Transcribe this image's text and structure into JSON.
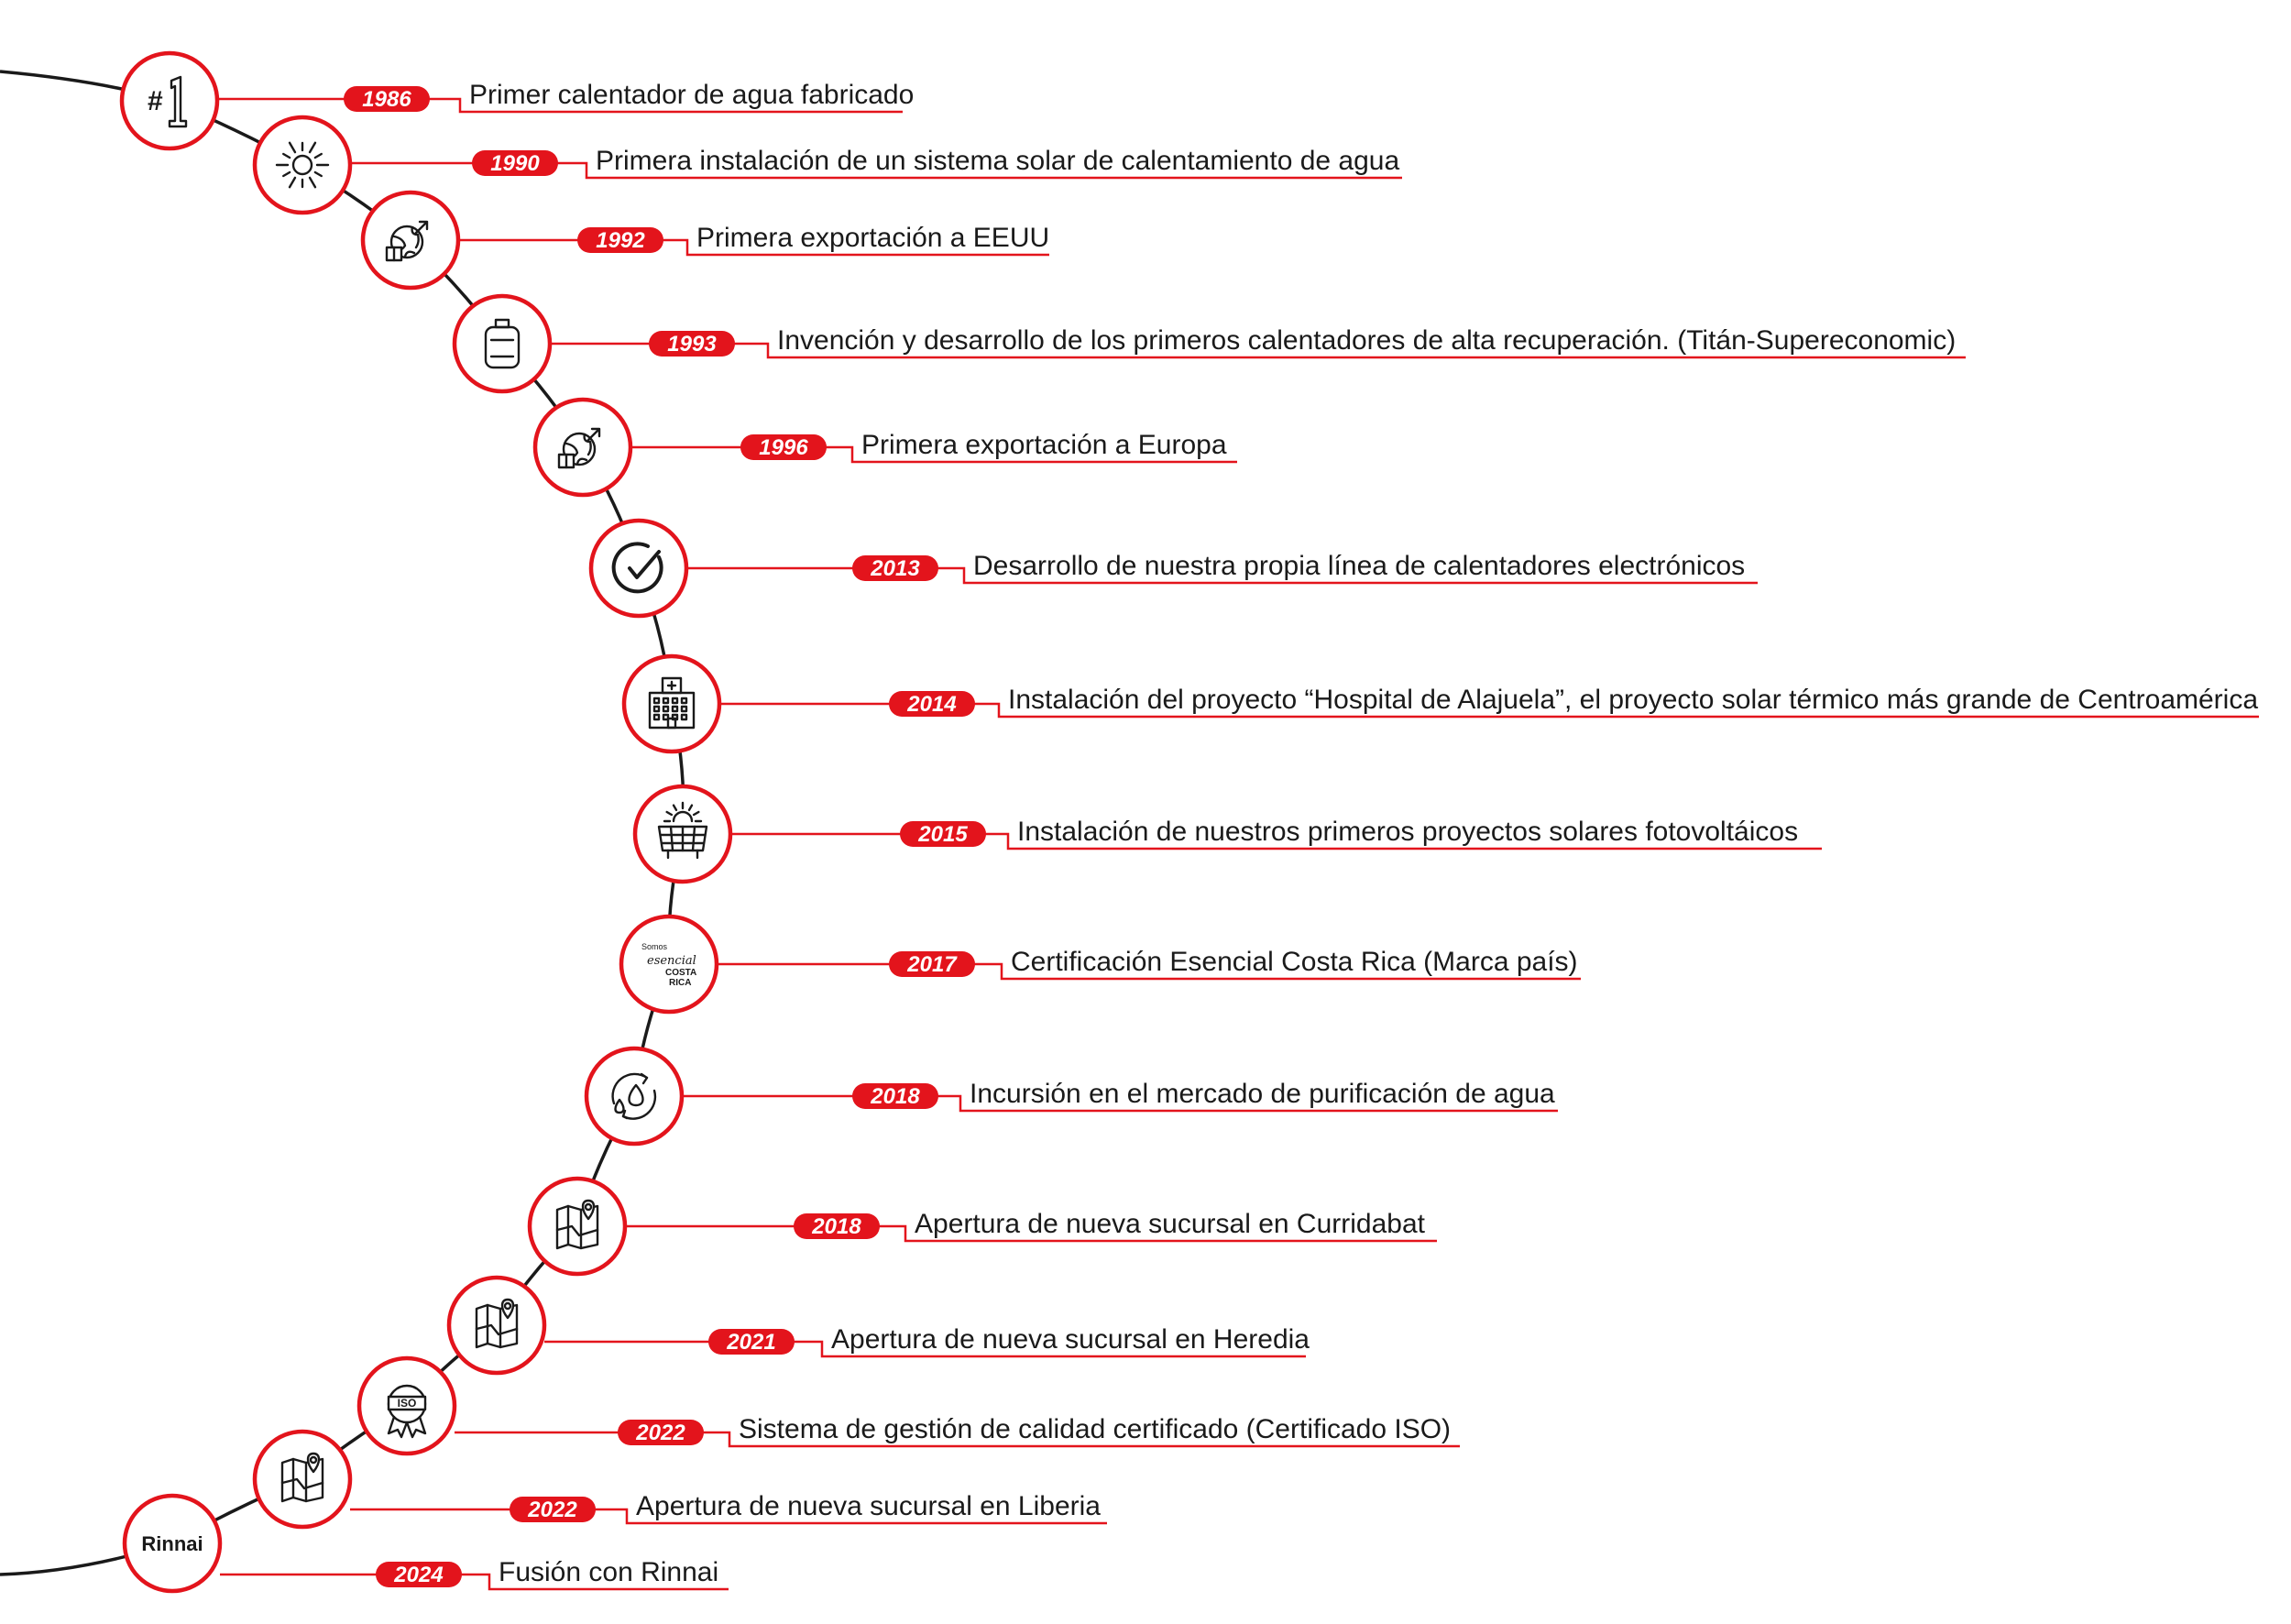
{
  "timeline": {
    "accent_color": "#e3141c",
    "line_color": "#1a1a1a",
    "milestones": [
      {
        "year": "1986",
        "text": "Primer calentador de agua fabricado",
        "icon": "number-one-icon"
      },
      {
        "year": "1990",
        "text": "Primera instalación de un sistema solar de calentamiento de agua",
        "icon": "sun-icon"
      },
      {
        "year": "1992",
        "text": "Primera exportación a EEUU",
        "icon": "globe-export-icon"
      },
      {
        "year": "1993",
        "text": "Invención y desarrollo de los primeros calentadores de alta recuperación. (Titán-Supereconomic)",
        "icon": "water-heater-icon"
      },
      {
        "year": "1996",
        "text": "Primera exportación a Europa",
        "icon": "globe-export-icon"
      },
      {
        "year": "2013",
        "text": "Desarrollo de nuestra propia línea de calentadores electrónicos",
        "icon": "check-circle-icon"
      },
      {
        "year": "2014",
        "text": "Instalación del proyecto “Hospital de Alajuela”, el proyecto solar térmico más grande de Centroamérica",
        "icon": "hospital-icon"
      },
      {
        "year": "2015",
        "text": "Instalación de nuestros primeros proyectos solares fotovoltáicos",
        "icon": "solar-panel-icon"
      },
      {
        "year": "2017",
        "text": "Certificación Esencial Costa Rica (Marca país)",
        "icon": "esencial-costa-rica-logo"
      },
      {
        "year": "2018",
        "text": "Incursión en el mercado de purificación de agua",
        "icon": "water-cycle-icon"
      },
      {
        "year": "2018",
        "text": "Apertura de nueva sucursal en Curridabat",
        "icon": "map-pin-icon"
      },
      {
        "year": "2021",
        "text": "Apertura de nueva sucursal en Heredia",
        "icon": "map-pin-icon"
      },
      {
        "year": "2022",
        "text": "Sistema de gestión de calidad certificado (Certificado ISO)",
        "icon": "iso-badge-icon"
      },
      {
        "year": "2022",
        "text": "Apertura de nueva sucursal en Liberia",
        "icon": "map-pin-icon"
      },
      {
        "year": "2024",
        "text": "Fusión con Rinnai",
        "icon": "rinnai-logo"
      }
    ],
    "logos": {
      "rinnai": "Rinnai",
      "esencial_top": "Somos",
      "esencial_script": "esencial",
      "esencial_line1": "COSTA",
      "esencial_line2": "RICA"
    },
    "iso_label": "ISO",
    "number_one_label": "#1"
  }
}
